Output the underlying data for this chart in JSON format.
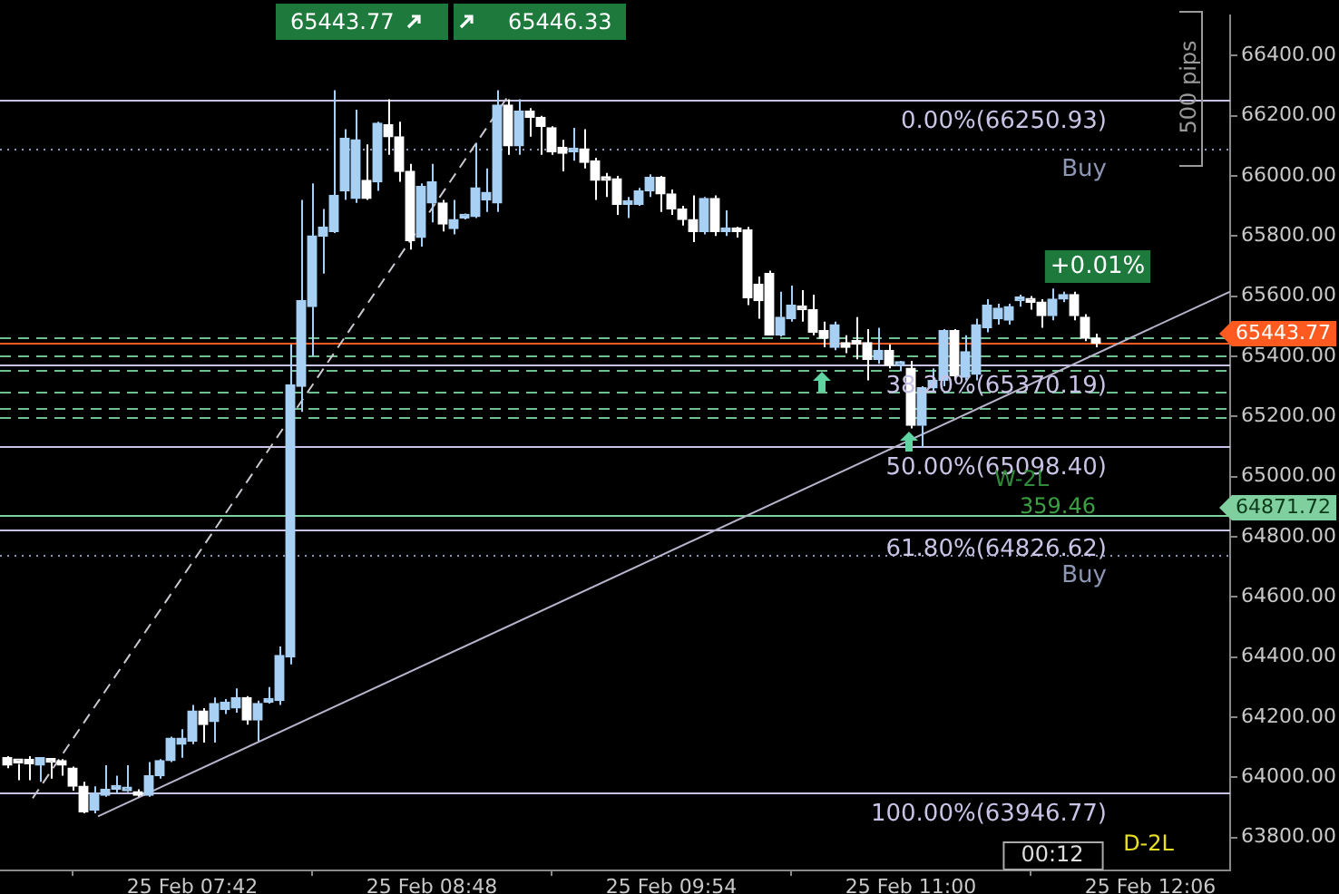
{
  "chart_data": {
    "type": "candlestick",
    "colors": [
      "#ffffff",
      "#ffffff",
      "#ffffff",
      "#a8d0f5",
      "#ffffff",
      "#ffffff",
      "#ffffff",
      "#ffffff",
      "#a8d0f5",
      "#a8d0f5",
      "#a8d0f5",
      "#a8d0f5",
      "#ffffff",
      "#a8d0f5",
      "#a8d0f5",
      "#a8d0f5",
      "#a8d0f5",
      "#a8d0f5",
      "#ffffff",
      "#a8d0f5",
      "#a8d0f5",
      "#a8d0f5",
      "#ffffff",
      "#a8d0f5",
      "#a8d0f5",
      "#a8d0f5",
      "#a8d0f5",
      "#a8d0f5",
      "#a8d0f5",
      "#a8d0f5",
      "#a8d0f5",
      "#a8d0f5",
      "#a8d0f5",
      "#ffffff",
      "#a8d0f5",
      "#ffffff",
      "#ffffff",
      "#ffffff",
      "#a8d0f5",
      "#a8d0f5",
      "#ffffff",
      "#a8d0f5",
      "#a8d0f5",
      "#a8d0f5",
      "#a8d0f5",
      "#a8d0f5",
      "#ffffff",
      "#a8d0f5",
      "#ffffff",
      "#ffffff",
      "#ffffff",
      "#ffffff",
      "#a8d0f5",
      "#ffffff",
      "#ffffff",
      "#ffffff",
      "#ffffff",
      "#a8d0f5",
      "#a8d0f5",
      "#a8d0f5",
      "#ffffff",
      "#ffffff",
      "#ffffff",
      "#ffffff",
      "#a8d0f5",
      "#ffffff",
      "#a8d0f5",
      "#ffffff",
      "#ffffff",
      "#ffffff",
      "#ffffff",
      "#a8d0f5",
      "#a8d0f5",
      "#ffffff",
      "#ffffff",
      "#ffffff",
      "#a8d0f5",
      "#ffffff",
      "#ffffff",
      "#ffffff",
      "#a8d0f5",
      "#ffffff",
      "#a8d0f5",
      "#ffffff",
      "#a8d0f5",
      "#a8d0f5",
      "#a8d0f5",
      "#ffffff",
      "#a8d0f5",
      "#a8d0f5",
      "#a8d0f5",
      "#a8d0f5",
      "#a8d0f5",
      "#a8d0f5",
      "#ffffff",
      "#ffffff",
      "#a8d0f5",
      "#a8d0f5",
      "#ffffff",
      "#ffffff",
      "#ffffff"
    ],
    "x": [
      "--02-25T06:51",
      "--02-25T06:54",
      "--02-25T06:57",
      "--02-25T07:00",
      "--02-25T07:03",
      "--02-25T07:06",
      "--02-25T07:09",
      "--02-25T07:12",
      "--02-25T07:15",
      "--02-25T07:18",
      "--02-25T07:21",
      "--02-25T07:24",
      "--02-25T07:27",
      "--02-25T07:30",
      "--02-25T07:33",
      "--02-25T07:36",
      "--02-25T07:39",
      "--02-25T07:42",
      "--02-25T07:45",
      "--02-25T07:48",
      "--02-25T07:51",
      "--02-25T07:54",
      "--02-25T07:57",
      "--02-25T08:00",
      "--02-25T08:03",
      "--02-25T08:06",
      "--02-25T08:09",
      "--02-25T08:12",
      "--02-25T08:15",
      "--02-25T08:18",
      "--02-25T08:21",
      "--02-25T08:24",
      "--02-25T08:27",
      "--02-25T08:30",
      "--02-25T08:33",
      "--02-25T08:36",
      "--02-25T08:39",
      "--02-25T08:42",
      "--02-25T08:45",
      "--02-25T08:48",
      "--02-25T08:51",
      "--02-25T08:54",
      "--02-25T08:57",
      "--02-25T09:00",
      "--02-25T09:03",
      "--02-25T09:06",
      "--02-25T09:09",
      "--02-25T09:12",
      "--02-25T09:15",
      "--02-25T09:18",
      "--02-25T09:21",
      "--02-25T09:24",
      "--02-25T09:27",
      "--02-25T09:30",
      "--02-25T09:33",
      "--02-25T09:36",
      "--02-25T09:39",
      "--02-25T09:42",
      "--02-25T09:45",
      "--02-25T09:48",
      "--02-25T09:51",
      "--02-25T09:54",
      "--02-25T09:57",
      "--02-25T10:00",
      "--02-25T10:03",
      "--02-25T10:06",
      "--02-25T10:09",
      "--02-25T10:12",
      "--02-25T10:15",
      "--02-25T10:18",
      "--02-25T10:21",
      "--02-25T10:24",
      "--02-25T10:27",
      "--02-25T10:30",
      "--02-25T10:33",
      "--02-25T10:36",
      "--02-25T10:39",
      "--02-25T10:42",
      "--02-25T10:45",
      "--02-25T10:48",
      "--02-25T10:51",
      "--02-25T10:54",
      "--02-25T10:57",
      "--02-25T11:00",
      "--02-25T11:03",
      "--02-25T11:06",
      "--02-25T11:09",
      "--02-25T11:12",
      "--02-25T11:15",
      "--02-25T11:18",
      "--02-25T11:21",
      "--02-25T11:24",
      "--02-25T11:27",
      "--02-25T11:30",
      "--02-25T11:33",
      "--02-25T11:36",
      "--02-25T11:39",
      "--02-25T11:42",
      "--02-25T11:45",
      "--02-25T11:48",
      "--02-25T11:51"
    ],
    "ohlc": [
      [
        64065,
        64070,
        64030,
        64040
      ],
      [
        64050,
        64055,
        63990,
        64048
      ],
      [
        64060,
        64070,
        63990,
        64045
      ],
      [
        64040,
        64065,
        63985,
        64065
      ],
      [
        64055,
        64060,
        63995,
        64050
      ],
      [
        64055,
        64060,
        64005,
        64040
      ],
      [
        64030,
        64035,
        63955,
        63970
      ],
      [
        63970,
        63985,
        63880,
        63885
      ],
      [
        63890,
        63970,
        63880,
        63945
      ],
      [
        63940,
        64040,
        63935,
        63960
      ],
      [
        63960,
        64005,
        63945,
        63965
      ],
      [
        63955,
        64040,
        63950,
        63960
      ],
      [
        63950,
        63960,
        63935,
        63940
      ],
      [
        63940,
        64050,
        63935,
        64005
      ],
      [
        64005,
        64060,
        63995,
        64055
      ],
      [
        64055,
        64135,
        64050,
        64130
      ],
      [
        64110,
        64160,
        64065,
        64130
      ],
      [
        64120,
        64240,
        64110,
        64220
      ],
      [
        64220,
        64230,
        64115,
        64175
      ],
      [
        64185,
        64265,
        64115,
        64245
      ],
      [
        64225,
        64260,
        64210,
        64250
      ],
      [
        64230,
        64295,
        64215,
        64265
      ],
      [
        64265,
        64270,
        64175,
        64190
      ],
      [
        64190,
        64255,
        64120,
        64245
      ],
      [
        64250,
        64300,
        64245,
        64255
      ],
      [
        64255,
        64435,
        64240,
        64405
      ],
      [
        64400,
        65440,
        64375,
        65305
      ],
      [
        65300,
        65920,
        65215,
        65585
      ],
      [
        65565,
        65975,
        65400,
        65800
      ],
      [
        65800,
        65890,
        65675,
        65830
      ],
      [
        65815,
        66285,
        65810,
        65935
      ],
      [
        65950,
        66155,
        65920,
        66125
      ],
      [
        65925,
        66220,
        65910,
        66120
      ],
      [
        65985,
        66105,
        65920,
        65925
      ],
      [
        65980,
        66180,
        65950,
        66175
      ],
      [
        66170,
        66255,
        66070,
        66130
      ],
      [
        66130,
        66180,
        65980,
        66015
      ],
      [
        66015,
        66040,
        65755,
        65785
      ],
      [
        65795,
        65975,
        65765,
        65965
      ],
      [
        65910,
        66040,
        65845,
        65980
      ],
      [
        65910,
        65920,
        65815,
        65840
      ],
      [
        65825,
        65920,
        65805,
        65855
      ],
      [
        65860,
        65875,
        65855,
        65870
      ],
      [
        65865,
        66110,
        65860,
        65960
      ],
      [
        65920,
        66025,
        65880,
        65945
      ],
      [
        65910,
        66285,
        65880,
        66235
      ],
      [
        66235,
        66255,
        66070,
        66100
      ],
      [
        66100,
        66255,
        66070,
        66215
      ],
      [
        66215,
        66225,
        66130,
        66195
      ],
      [
        66195,
        66200,
        66070,
        66165
      ],
      [
        66160,
        66165,
        66070,
        66080
      ],
      [
        66095,
        66120,
        66015,
        66075
      ],
      [
        66080,
        66160,
        66050,
        66085
      ],
      [
        66090,
        66155,
        66025,
        66045
      ],
      [
        66050,
        66060,
        65920,
        65985
      ],
      [
        65990,
        66010,
        65930,
        65985
      ],
      [
        65990,
        66000,
        65870,
        65905
      ],
      [
        65905,
        65930,
        65860,
        65910
      ],
      [
        65905,
        65960,
        65900,
        65950
      ],
      [
        65950,
        66005,
        65930,
        65995
      ],
      [
        65995,
        66000,
        65880,
        65940
      ],
      [
        65940,
        65955,
        65870,
        65890
      ],
      [
        65890,
        65900,
        65835,
        65855
      ],
      [
        65855,
        65935,
        65780,
        65815
      ],
      [
        65815,
        65930,
        65805,
        65925
      ],
      [
        65925,
        65935,
        65800,
        65815
      ],
      [
        65815,
        65885,
        65800,
        65820
      ],
      [
        65820,
        65830,
        65795,
        65815
      ],
      [
        65820,
        65830,
        65570,
        65595
      ],
      [
        65640,
        65665,
        65525,
        65585
      ],
      [
        65675,
        65685,
        65470,
        65470
      ],
      [
        65470,
        65615,
        65465,
        65530
      ],
      [
        65525,
        65635,
        65515,
        65570
      ],
      [
        65565,
        65620,
        65515,
        65555
      ],
      [
        65555,
        65605,
        65470,
        65480
      ],
      [
        65485,
        65515,
        65430,
        65460
      ],
      [
        65430,
        65515,
        65420,
        65505
      ],
      [
        65445,
        65470,
        65410,
        65430
      ],
      [
        65445,
        65530,
        65390,
        65440
      ],
      [
        65445,
        65490,
        65320,
        65390
      ],
      [
        65390,
        65495,
        65375,
        65420
      ],
      [
        65420,
        65440,
        65360,
        65370
      ],
      [
        65370,
        65385,
        65350,
        65375
      ],
      [
        65360,
        65385,
        65160,
        65170
      ],
      [
        65170,
        65300,
        65095,
        65295
      ],
      [
        65295,
        65360,
        65280,
        65320
      ],
      [
        65320,
        65490,
        65300,
        65485
      ],
      [
        65485,
        65490,
        65320,
        65335
      ],
      [
        65330,
        65470,
        65320,
        65415
      ],
      [
        65340,
        65525,
        65320,
        65505
      ],
      [
        65495,
        65590,
        65480,
        65570
      ],
      [
        65525,
        65575,
        65505,
        65560
      ],
      [
        65520,
        65575,
        65505,
        65565
      ],
      [
        65585,
        65605,
        65565,
        65590
      ],
      [
        65590,
        65600,
        65555,
        65580
      ],
      [
        65580,
        65590,
        65495,
        65535
      ],
      [
        65535,
        65625,
        65520,
        65590
      ],
      [
        65590,
        65615,
        65580,
        65605
      ],
      [
        65605,
        65615,
        65520,
        65535
      ],
      [
        65530,
        65540,
        65450,
        65460
      ],
      [
        65460,
        65475,
        65430,
        65444
      ]
    ],
    "series": [
      {
        "type": "line",
        "x": [
          "--02-25T07:16",
          "--02-25T12:28"
        ],
        "values": [
          63870,
          65615
        ],
        "color": "#b8b4cc",
        "line_style": "solid"
      },
      {
        "type": "line",
        "x": [
          "--02-25T06:58",
          "--02-25T09:09"
        ],
        "values": [
          63930,
          66265
        ],
        "color": "#c8c8d0",
        "line_style": "dashed"
      }
    ],
    "xlim": [
      "--02-25T06:49",
      "--02-25T12:28"
    ],
    "ylim": [
      63690,
      66533
    ],
    "xticks": [
      {
        "value": "--02-25T07:42",
        "label": "25 Feb 07:42"
      },
      {
        "value": "--02-25T08:48",
        "label": "25 Feb 08:48"
      },
      {
        "value": "--02-25T09:54",
        "label": "25 Feb 09:54"
      },
      {
        "value": "--02-25T11:00",
        "label": "25 Feb 11:00"
      },
      {
        "value": "--02-25T12:06",
        "label": "25 Feb 12:06"
      }
    ],
    "yticks": [
      {
        "value": 63800,
        "label": "63800.00"
      },
      {
        "value": 64000,
        "label": "64000.00"
      },
      {
        "value": 64200,
        "label": "64200.00"
      },
      {
        "value": 64400,
        "label": "64400.00"
      },
      {
        "value": 64600,
        "label": "64600.00"
      },
      {
        "value": 64800,
        "label": "64800.00"
      },
      {
        "value": 65000,
        "label": "65000.00"
      },
      {
        "value": 65200,
        "label": "65200.00"
      },
      {
        "value": 65400,
        "label": "65400.00"
      },
      {
        "value": 65600,
        "label": "65600.00"
      },
      {
        "value": 65800,
        "label": "65800.00"
      },
      {
        "value": 66000,
        "label": "66000.00"
      },
      {
        "value": 66200,
        "label": "66200.00"
      },
      {
        "value": 66400,
        "label": "66400.00"
      }
    ],
    "grid": false,
    "legend": false,
    "ref_lines": [
      {
        "axis": "y",
        "value": 66250.93,
        "label": "0.00%(66250.93)",
        "color": "#c9c3e6",
        "line_style": "solid"
      },
      {
        "axis": "y",
        "value": 66090,
        "label": "Buy",
        "color": "#8d96b4",
        "line_style": "dotted"
      },
      {
        "axis": "y",
        "value": 65370.19,
        "label": "38.20%(65370.19)",
        "color": "#c9c3e6",
        "line_style": "solid"
      },
      {
        "axis": "y",
        "value": 65098.4,
        "label": "50.00%(65098.40)",
        "color": "#c9c3e6",
        "line_style": "solid"
      },
      {
        "axis": "y",
        "value": 64826.62,
        "label": "61.80%(64826.62)",
        "color": "#c9c3e6",
        "line_style": "solid"
      },
      {
        "axis": "y",
        "value": 64740,
        "label": "Buy",
        "color": "#8d96b4",
        "line_style": "dotted"
      },
      {
        "axis": "y",
        "value": 63946.77,
        "label": "100.00%(63946.77)",
        "color": "#c9c3e6",
        "line_style": "solid"
      },
      {
        "axis": "y",
        "value": 65465,
        "color": "#6fbf8f",
        "line_style": "dashed"
      },
      {
        "axis": "y",
        "value": 65405,
        "color": "#6fbf8f",
        "line_style": "dashed"
      },
      {
        "axis": "y",
        "value": 65355,
        "color": "#6fbf8f",
        "line_style": "dashed"
      },
      {
        "axis": "y",
        "value": 65285,
        "color": "#6fbf8f",
        "line_style": "dashed"
      },
      {
        "axis": "y",
        "value": 65230,
        "color": "#6fbf8f",
        "line_style": "dashed"
      },
      {
        "axis": "y",
        "value": 65195,
        "color": "#6fbf8f",
        "line_style": "dashed"
      },
      {
        "axis": "y",
        "value": 65443.77,
        "color": "#ff5a1f",
        "line_style": "solid"
      },
      {
        "axis": "y",
        "value": 64871.72,
        "color": "#7fcf9f",
        "line_style": "solid"
      }
    ],
    "annotations": [
      "65443.77",
      "64871.72",
      "+0.01%",
      "65443.77",
      "65446.33",
      "500 pips",
      "W-2L",
      "359.46",
      "D-2L",
      "00:12"
    ]
  }
}
